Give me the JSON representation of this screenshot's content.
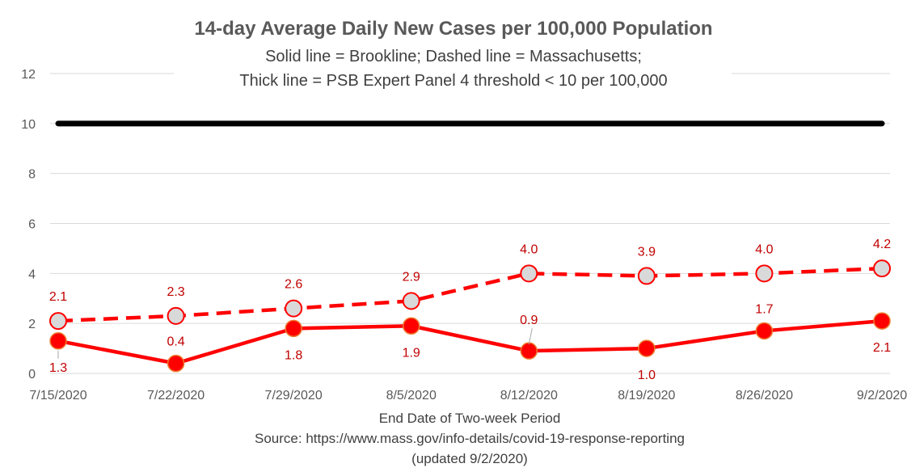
{
  "chart_data": {
    "type": "line",
    "title": "14-day Average Daily New Cases per 100,000 Population",
    "subtitle_lines": [
      "Solid line = Brookline; Dashed line = Massachusetts;",
      "Thick line = PSB Expert Panel 4 threshold < 10 per 100,000"
    ],
    "xlabel": "End Date of Two-week Period",
    "footer_lines": [
      "Source: https://www.mass.gov/info-details/covid-19-response-reporting",
      "(updated 9/2/2020)"
    ],
    "categories": [
      "7/15/2020",
      "7/22/2020",
      "7/29/2020",
      "8/5/2020",
      "8/12/2020",
      "8/19/2020",
      "8/26/2020",
      "9/2/2020"
    ],
    "ylim": [
      0,
      12
    ],
    "yticks": [
      0,
      2,
      4,
      6,
      8,
      10,
      12
    ],
    "grid": true,
    "series": [
      {
        "name": "Massachusetts",
        "style": "dashed",
        "values": [
          2.1,
          2.3,
          2.6,
          2.9,
          4.0,
          3.9,
          4.0,
          4.2
        ],
        "labels": [
          "2.1",
          "2.3",
          "2.6",
          "2.9",
          "4.0",
          "3.9",
          "4.0",
          "4.2"
        ],
        "color": "#ff0000",
        "marker_fill": "#d9d9d9"
      },
      {
        "name": "Brookline",
        "style": "solid",
        "values": [
          1.3,
          0.4,
          1.8,
          1.9,
          0.9,
          1.0,
          1.7,
          2.1
        ],
        "labels": [
          "1.3",
          "0.4",
          "1.8",
          "1.9",
          "0.9",
          "1.0",
          "1.7",
          "2.1"
        ],
        "color": "#ff0000",
        "marker_fill": "#ff0000"
      },
      {
        "name": "PSB Expert Panel 4 threshold",
        "style": "thick",
        "values": [
          10,
          10,
          10,
          10,
          10,
          10,
          10,
          10
        ],
        "color": "#000000"
      }
    ],
    "label_color": "#c00000",
    "grid_color": "#d9d9d9"
  }
}
